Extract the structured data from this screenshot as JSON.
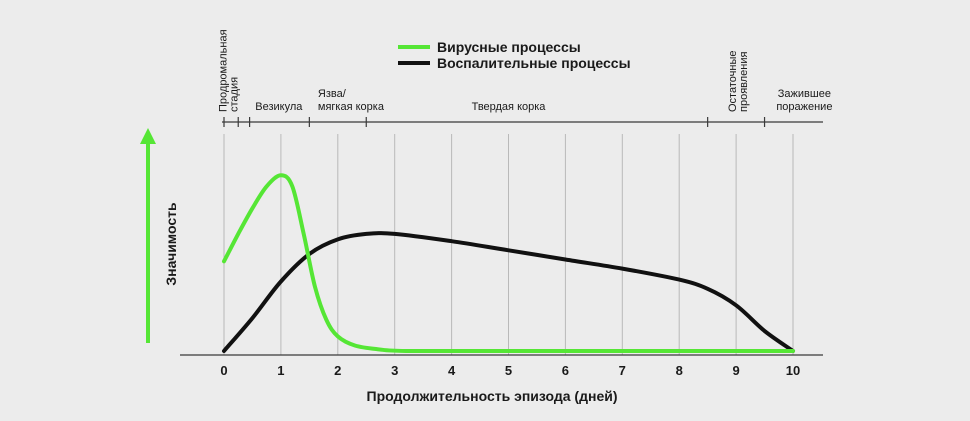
{
  "chart_data": {
    "type": "line",
    "xlabel": "Продолжительность эпизода (дней)",
    "ylabel": "Значимость",
    "x_ticks": [
      0,
      1,
      2,
      3,
      4,
      5,
      6,
      7,
      8,
      9,
      10
    ],
    "xlim": [
      0,
      10
    ],
    "ylim": [
      0,
      1
    ],
    "y_tick_labels_shown": false,
    "grid": "vertical",
    "legend_position": "top-center",
    "series": [
      {
        "name": "Вирусные процессы",
        "color": "#55e635",
        "points": [
          [
            0,
            0.49
          ],
          [
            0.25,
            0.64
          ],
          [
            0.5,
            0.78
          ],
          [
            0.75,
            0.9
          ],
          [
            1.0,
            0.96
          ],
          [
            1.2,
            0.9
          ],
          [
            1.4,
            0.64
          ],
          [
            1.6,
            0.35
          ],
          [
            1.8,
            0.17
          ],
          [
            2.0,
            0.08
          ],
          [
            2.3,
            0.03
          ],
          [
            2.7,
            0.01
          ],
          [
            3.2,
            0.0
          ],
          [
            5,
            0.0
          ],
          [
            7,
            0.0
          ],
          [
            9,
            0.0
          ],
          [
            10,
            0.0
          ]
        ]
      },
      {
        "name": "Воспалительные процессы",
        "color": "#111111",
        "points": [
          [
            0,
            0.0
          ],
          [
            0.5,
            0.18
          ],
          [
            1.0,
            0.38
          ],
          [
            1.5,
            0.53
          ],
          [
            2.0,
            0.61
          ],
          [
            2.5,
            0.64
          ],
          [
            3.0,
            0.64
          ],
          [
            4.0,
            0.6
          ],
          [
            5.0,
            0.55
          ],
          [
            6.0,
            0.5
          ],
          [
            7.0,
            0.45
          ],
          [
            8.0,
            0.39
          ],
          [
            8.5,
            0.34
          ],
          [
            9.0,
            0.25
          ],
          [
            9.5,
            0.11
          ],
          [
            10.0,
            0.0
          ]
        ]
      }
    ],
    "stages": [
      {
        "label": "Продромальная стадия",
        "lines": [
          "Продромальная",
          "стадия"
        ],
        "x": 0.1,
        "vertical": true
      },
      {
        "label": "Везикула",
        "lines": [
          "Везикула"
        ],
        "x": 1.1,
        "vertical": false
      },
      {
        "label": "Язва/ мягкая корка",
        "lines": [
          "Язва/",
          "мягкая корка"
        ],
        "x": 1.6,
        "vertical": false
      },
      {
        "label": "Твердая корка",
        "lines": [
          "Твердая корка"
        ],
        "x": 5.0,
        "vertical": false
      },
      {
        "label": "Остаточные проявления",
        "lines": [
          "Остаточные",
          "проявления"
        ],
        "x": 9.05,
        "vertical": true
      },
      {
        "label": "Зажившее поражение",
        "lines": [
          "Зажившее",
          "поражение"
        ],
        "x": 10.2,
        "vertical": false
      }
    ],
    "stage_ticks": [
      0,
      0.25,
      0.45,
      1.5,
      2.5,
      8.5,
      9.5
    ]
  }
}
